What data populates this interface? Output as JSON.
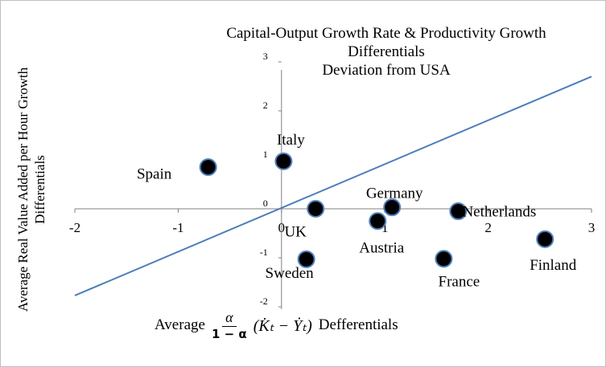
{
  "chart_data": {
    "type": "scatter",
    "title": "Capital-Output Growth Rate & Productivity Growth Differentials",
    "subtitle": "Deviation from USA",
    "y_label": "Average Real Value Added per Hour Growth Differentials",
    "x_label": {
      "prefix": "Average",
      "numerator": "α",
      "denominator": "1 − α",
      "term": "(K̇ₜ − Ẏₜ)",
      "suffix": "Defferentials"
    },
    "categories": [
      "Spain",
      "Italy",
      "UK",
      "Sweden",
      "Austria",
      "Germany",
      "Netherlands",
      "France",
      "Finland"
    ],
    "x": [
      -0.71,
      0.02,
      0.33,
      0.24,
      0.93,
      1.07,
      1.71,
      1.57,
      2.55
    ],
    "values": [
      0.85,
      0.97,
      0.0,
      -1.03,
      -0.25,
      0.03,
      -0.05,
      -1.02,
      -0.62
    ],
    "color": "#000000",
    "marker_edge": "#4f81bd",
    "line": {
      "x": [
        -2,
        3
      ],
      "values": [
        -1.77,
        2.7
      ],
      "color": "#4a7ebb"
    },
    "xlim": [
      -2,
      3
    ],
    "xticks": [
      -2,
      -1,
      0,
      1,
      2,
      3
    ],
    "ylim": [
      -2,
      3
    ],
    "yticks": [
      -2,
      -1,
      0,
      1,
      2,
      3
    ]
  }
}
